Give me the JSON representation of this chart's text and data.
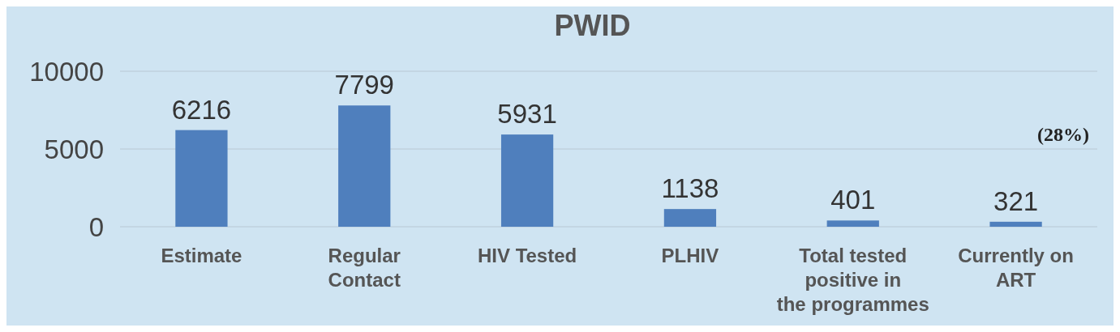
{
  "chart_data": {
    "type": "bar",
    "title": "PWID",
    "categories": [
      "Estimate",
      "Regular Contact",
      "HIV Tested",
      "PLHIV",
      "Total tested positive in the programmes",
      "Currently on ART"
    ],
    "values": [
      6216,
      7799,
      5931,
      1138,
      401,
      321
    ],
    "color": "#4f7fbd",
    "ylim": [
      0,
      10000
    ],
    "yticks": [
      0,
      5000,
      10000
    ],
    "grid": "y",
    "data_labels": true,
    "annotations": [
      "(28%)"
    ]
  }
}
